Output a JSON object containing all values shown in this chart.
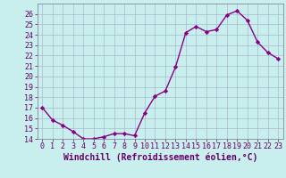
{
  "x": [
    0,
    1,
    2,
    3,
    4,
    5,
    6,
    7,
    8,
    9,
    10,
    11,
    12,
    13,
    14,
    15,
    16,
    17,
    18,
    19,
    20,
    21,
    22,
    23
  ],
  "y": [
    17.0,
    15.8,
    15.3,
    14.7,
    14.0,
    14.0,
    14.2,
    14.5,
    14.5,
    14.3,
    16.5,
    18.1,
    18.6,
    20.9,
    24.2,
    24.8,
    24.3,
    24.5,
    25.9,
    26.3,
    25.4,
    23.3,
    22.3,
    21.7
  ],
  "line_color": "#880088",
  "marker": "D",
  "marker_size": 2.2,
  "bg_color": "#c8eeee",
  "grid_color": "#aabbcc",
  "ylim": [
    14,
    27
  ],
  "xlim": [
    -0.5,
    23.5
  ],
  "yticks": [
    14,
    15,
    16,
    17,
    18,
    19,
    20,
    21,
    22,
    23,
    24,
    25,
    26
  ],
  "xticks": [
    0,
    1,
    2,
    3,
    4,
    5,
    6,
    7,
    8,
    9,
    10,
    11,
    12,
    13,
    14,
    15,
    16,
    17,
    18,
    19,
    20,
    21,
    22,
    23
  ],
  "xlabel": "Windchill (Refroidissement éolien,°C)",
  "xlabel_fontsize": 7,
  "tick_fontsize": 6,
  "line_width": 1.0,
  "spine_color": "#888899",
  "tick_color": "#660066"
}
